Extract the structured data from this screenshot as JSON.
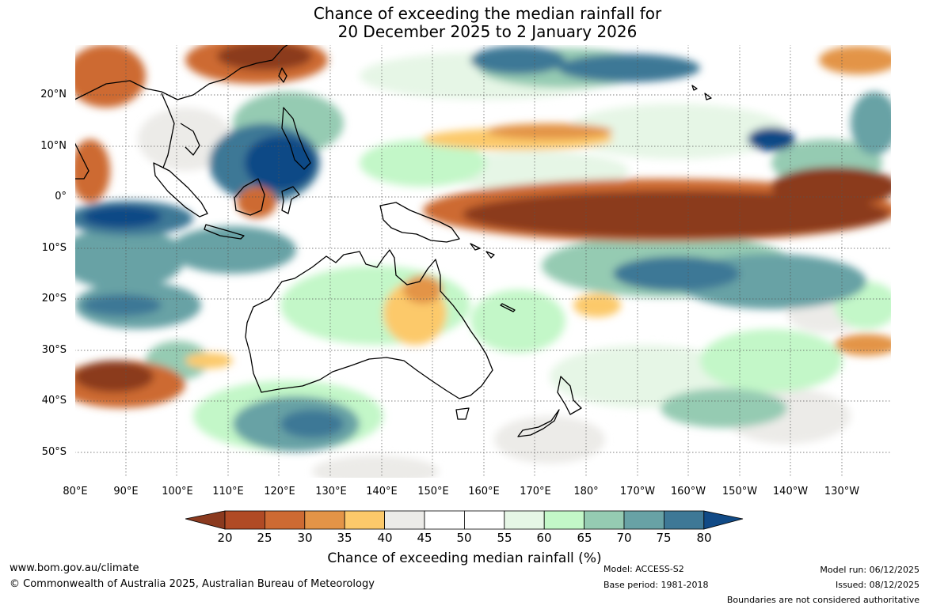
{
  "title": {
    "line1": "Chance of exceeding the median rainfall for",
    "line2": "20 December 2025 to 2 January 2026"
  },
  "map": {
    "latitude_labels": [
      "20°N",
      "10°N",
      "0°",
      "10°S",
      "20°S",
      "30°S",
      "40°S",
      "50°S"
    ],
    "longitude_labels": [
      "80°E",
      "90°E",
      "100°E",
      "110°E",
      "120°E",
      "130°E",
      "140°E",
      "150°E",
      "160°E",
      "170°E",
      "180°",
      "170°W",
      "160°W",
      "150°W",
      "140°W",
      "130°W"
    ]
  },
  "legend": {
    "title": "Chance of exceeding median rainfall (%)",
    "ticks": [
      "20",
      "25",
      "30",
      "35",
      "40",
      "45",
      "50",
      "55",
      "60",
      "65",
      "70",
      "75",
      "80"
    ],
    "colors": [
      "#8b3a1f",
      "#b04a25",
      "#cd6a33",
      "#e39447",
      "#fcc96a",
      "#ecebe8",
      "#ffffff",
      "#ffffff",
      "#e6f6e6",
      "#c3f7c8",
      "#95cbb2",
      "#68a2a5",
      "#3e7896",
      "#114a86"
    ]
  },
  "footer": {
    "url": "www.bom.gov.au/climate",
    "copyright": "© Commonwealth of Australia 2025, Australian Bureau of Meteorology",
    "model": "Model: ACCESS-S2",
    "base_period": "Base period: 1981-2018",
    "model_run": "Model run: 06/12/2025",
    "issued": "Issued: 08/12/2025",
    "disclaimer": "Boundaries are not considered authoritative"
  }
}
